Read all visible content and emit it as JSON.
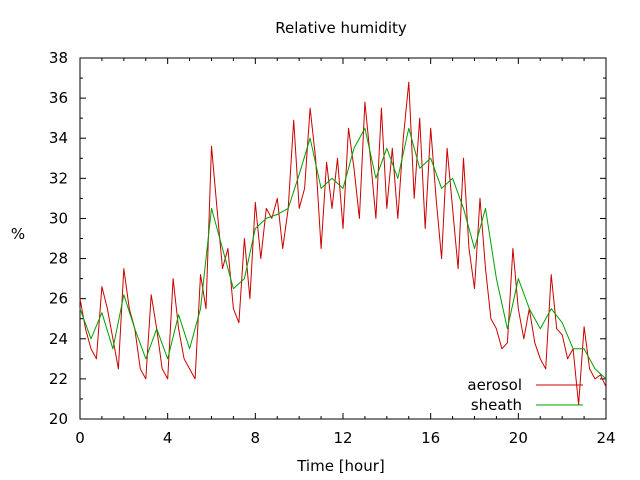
{
  "chart_data": {
    "type": "line",
    "title": "Relative humidity",
    "xlabel": "Time [hour]",
    "ylabel": "%",
    "xlim": [
      0,
      24
    ],
    "ylim": [
      20,
      38
    ],
    "x_ticks": [
      0,
      4,
      8,
      12,
      16,
      20,
      24
    ],
    "x_tick_labels": [
      "0",
      "4",
      "8",
      "12",
      "16",
      "20",
      "24"
    ],
    "y_ticks": [
      20,
      22,
      24,
      26,
      28,
      30,
      32,
      34,
      36,
      38
    ],
    "y_tick_labels": [
      "20",
      "22",
      "24",
      "26",
      "28",
      "30",
      "32",
      "34",
      "36",
      "38"
    ],
    "grid": false,
    "legend_position": "bottom-right",
    "series": [
      {
        "name": "aerosol",
        "color": "#cc0000",
        "points": [
          [
            0.0,
            26.0
          ],
          [
            0.25,
            24.5
          ],
          [
            0.5,
            23.5
          ],
          [
            0.75,
            23.0
          ],
          [
            1.0,
            26.6
          ],
          [
            1.25,
            25.5
          ],
          [
            1.5,
            24.0
          ],
          [
            1.75,
            22.5
          ],
          [
            2.0,
            27.5
          ],
          [
            2.25,
            25.5
          ],
          [
            2.5,
            24.5
          ],
          [
            2.75,
            22.5
          ],
          [
            3.0,
            22.0
          ],
          [
            3.25,
            26.2
          ],
          [
            3.5,
            24.5
          ],
          [
            3.75,
            22.5
          ],
          [
            4.0,
            22.0
          ],
          [
            4.25,
            27.0
          ],
          [
            4.5,
            24.5
          ],
          [
            4.75,
            23.0
          ],
          [
            5.0,
            22.5
          ],
          [
            5.25,
            22.0
          ],
          [
            5.5,
            27.2
          ],
          [
            5.75,
            25.5
          ],
          [
            6.0,
            33.6
          ],
          [
            6.25,
            30.5
          ],
          [
            6.5,
            27.5
          ],
          [
            6.75,
            28.5
          ],
          [
            7.0,
            25.5
          ],
          [
            7.25,
            24.8
          ],
          [
            7.5,
            29.0
          ],
          [
            7.75,
            26.0
          ],
          [
            8.0,
            30.8
          ],
          [
            8.25,
            28.0
          ],
          [
            8.5,
            30.5
          ],
          [
            8.75,
            30.0
          ],
          [
            9.0,
            31.0
          ],
          [
            9.25,
            28.5
          ],
          [
            9.5,
            30.5
          ],
          [
            9.75,
            34.9
          ],
          [
            10.0,
            30.5
          ],
          [
            10.25,
            31.5
          ],
          [
            10.5,
            35.5
          ],
          [
            10.75,
            33.0
          ],
          [
            11.0,
            28.5
          ],
          [
            11.25,
            32.8
          ],
          [
            11.5,
            30.5
          ],
          [
            11.75,
            33.0
          ],
          [
            12.0,
            29.5
          ],
          [
            12.25,
            34.5
          ],
          [
            12.5,
            32.5
          ],
          [
            12.75,
            30.0
          ],
          [
            13.0,
            35.8
          ],
          [
            13.25,
            33.0
          ],
          [
            13.5,
            30.0
          ],
          [
            13.75,
            35.5
          ],
          [
            14.0,
            30.5
          ],
          [
            14.25,
            33.5
          ],
          [
            14.5,
            30.0
          ],
          [
            14.75,
            34.0
          ],
          [
            15.0,
            36.8
          ],
          [
            15.25,
            31.0
          ],
          [
            15.5,
            35.0
          ],
          [
            15.75,
            29.5
          ],
          [
            16.0,
            34.5
          ],
          [
            16.25,
            31.0
          ],
          [
            16.5,
            28.0
          ],
          [
            16.75,
            33.5
          ],
          [
            17.0,
            30.5
          ],
          [
            17.25,
            27.5
          ],
          [
            17.5,
            33.0
          ],
          [
            17.75,
            28.5
          ],
          [
            18.0,
            26.5
          ],
          [
            18.25,
            31.0
          ],
          [
            18.5,
            27.5
          ],
          [
            18.75,
            25.0
          ],
          [
            19.0,
            24.5
          ],
          [
            19.25,
            23.5
          ],
          [
            19.5,
            23.8
          ],
          [
            19.75,
            28.5
          ],
          [
            20.0,
            25.5
          ],
          [
            20.25,
            24.0
          ],
          [
            20.5,
            25.5
          ],
          [
            20.75,
            23.8
          ],
          [
            21.0,
            23.0
          ],
          [
            21.25,
            22.5
          ],
          [
            21.5,
            27.2
          ],
          [
            21.75,
            24.5
          ],
          [
            22.0,
            24.2
          ],
          [
            22.25,
            23.0
          ],
          [
            22.5,
            23.5
          ],
          [
            22.75,
            20.7
          ],
          [
            23.0,
            24.6
          ],
          [
            23.25,
            22.5
          ],
          [
            23.5,
            22.0
          ],
          [
            23.75,
            22.2
          ],
          [
            24.0,
            21.6
          ]
        ]
      },
      {
        "name": "sheath",
        "color": "#00a000",
        "points": [
          [
            0.0,
            25.5
          ],
          [
            0.5,
            24.0
          ],
          [
            1.0,
            25.3
          ],
          [
            1.5,
            23.5
          ],
          [
            2.0,
            26.2
          ],
          [
            2.5,
            24.5
          ],
          [
            3.0,
            23.0
          ],
          [
            3.5,
            24.5
          ],
          [
            4.0,
            23.0
          ],
          [
            4.5,
            25.2
          ],
          [
            5.0,
            23.5
          ],
          [
            5.5,
            25.5
          ],
          [
            6.0,
            30.5
          ],
          [
            6.5,
            28.5
          ],
          [
            7.0,
            26.5
          ],
          [
            7.5,
            27.0
          ],
          [
            8.0,
            29.5
          ],
          [
            8.5,
            30.0
          ],
          [
            9.0,
            30.2
          ],
          [
            9.5,
            30.5
          ],
          [
            10.0,
            32.2
          ],
          [
            10.5,
            34.0
          ],
          [
            11.0,
            31.5
          ],
          [
            11.5,
            32.0
          ],
          [
            12.0,
            31.5
          ],
          [
            12.5,
            33.5
          ],
          [
            13.0,
            34.5
          ],
          [
            13.5,
            32.0
          ],
          [
            14.0,
            33.5
          ],
          [
            14.5,
            32.0
          ],
          [
            15.0,
            34.5
          ],
          [
            15.5,
            32.5
          ],
          [
            16.0,
            33.0
          ],
          [
            16.5,
            31.5
          ],
          [
            17.0,
            32.0
          ],
          [
            17.5,
            30.5
          ],
          [
            18.0,
            28.5
          ],
          [
            18.5,
            30.5
          ],
          [
            19.0,
            27.0
          ],
          [
            19.5,
            24.5
          ],
          [
            20.0,
            27.0
          ],
          [
            20.5,
            25.5
          ],
          [
            21.0,
            24.5
          ],
          [
            21.5,
            25.5
          ],
          [
            22.0,
            24.8
          ],
          [
            22.5,
            23.5
          ],
          [
            23.0,
            23.5
          ],
          [
            23.5,
            22.5
          ],
          [
            24.0,
            22.0
          ]
        ]
      }
    ]
  }
}
